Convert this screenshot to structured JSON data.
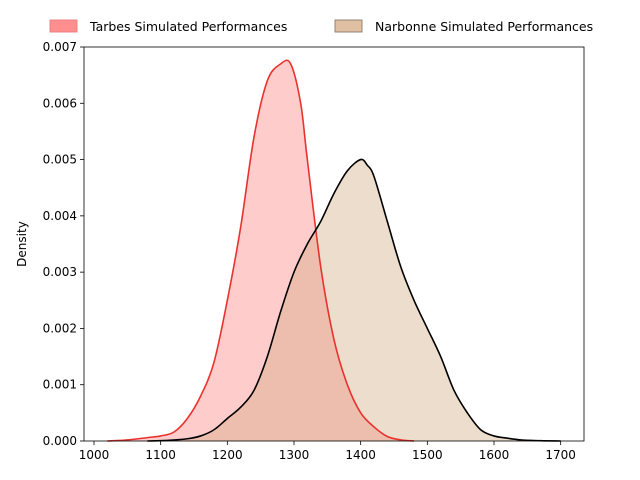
{
  "chart_data": {
    "type": "area",
    "title": "",
    "xlabel": "",
    "ylabel": "Density",
    "xlim": [
      985,
      1735
    ],
    "ylim": [
      0,
      0.007
    ],
    "xticks": [
      1000,
      1100,
      1200,
      1300,
      1400,
      1500,
      1600,
      1700
    ],
    "yticks": [
      0,
      0.001,
      0.002,
      0.003,
      0.004,
      0.005,
      0.006,
      0.007
    ],
    "ytick_labels": [
      "0.000",
      "0.001",
      "0.002",
      "0.003",
      "0.004",
      "0.005",
      "0.006",
      "0.007"
    ],
    "grid": false,
    "legend_position": "top",
    "series": [
      {
        "name": "Tarbes Simulated Performances",
        "fill_color": "#ff9999",
        "fill_opacity": 0.5,
        "line_color": "#e8322d",
        "legend_fill": "#ff8f8f",
        "legend_edge": "#e87c7c",
        "points": [
          [
            1020,
            0
          ],
          [
            1050,
            2e-05
          ],
          [
            1080,
            6e-05
          ],
          [
            1100,
            9e-05
          ],
          [
            1120,
            0.00016
          ],
          [
            1140,
            0.0004
          ],
          [
            1160,
            0.0008
          ],
          [
            1180,
            0.0014
          ],
          [
            1200,
            0.0025
          ],
          [
            1220,
            0.0038
          ],
          [
            1240,
            0.0054
          ],
          [
            1260,
            0.0064
          ],
          [
            1280,
            0.0067
          ],
          [
            1295,
            0.0067
          ],
          [
            1310,
            0.006
          ],
          [
            1320,
            0.005
          ],
          [
            1340,
            0.0031
          ],
          [
            1360,
            0.0018
          ],
          [
            1380,
            0.001
          ],
          [
            1400,
            0.0005
          ],
          [
            1420,
            0.00025
          ],
          [
            1440,
            8e-05
          ],
          [
            1460,
            2e-05
          ],
          [
            1480,
            0
          ]
        ]
      },
      {
        "name": "Narbonne Simulated Performances",
        "fill_color": "#d2aa80",
        "fill_opacity": 0.4,
        "line_color": "#000000",
        "legend_fill": "#e0c0a2",
        "legend_edge": "#8c7a6a",
        "points": [
          [
            1080,
            0
          ],
          [
            1110,
            1e-05
          ],
          [
            1140,
            4e-05
          ],
          [
            1160,
            9e-05
          ],
          [
            1180,
            0.0002
          ],
          [
            1200,
            0.0004
          ],
          [
            1220,
            0.0006
          ],
          [
            1240,
            0.0009
          ],
          [
            1260,
            0.0015
          ],
          [
            1280,
            0.0023
          ],
          [
            1300,
            0.003
          ],
          [
            1320,
            0.0035
          ],
          [
            1340,
            0.0039
          ],
          [
            1360,
            0.0044
          ],
          [
            1380,
            0.0048
          ],
          [
            1400,
            0.005
          ],
          [
            1410,
            0.0049
          ],
          [
            1420,
            0.0047
          ],
          [
            1440,
            0.0039
          ],
          [
            1460,
            0.0031
          ],
          [
            1480,
            0.0025
          ],
          [
            1500,
            0.002
          ],
          [
            1520,
            0.0015
          ],
          [
            1540,
            0.0009
          ],
          [
            1560,
            0.0005
          ],
          [
            1580,
            0.0002
          ],
          [
            1600,
            9e-05
          ],
          [
            1620,
            5e-05
          ],
          [
            1640,
            2e-05
          ],
          [
            1670,
            5e-06
          ],
          [
            1700,
            0
          ]
        ]
      }
    ]
  }
}
